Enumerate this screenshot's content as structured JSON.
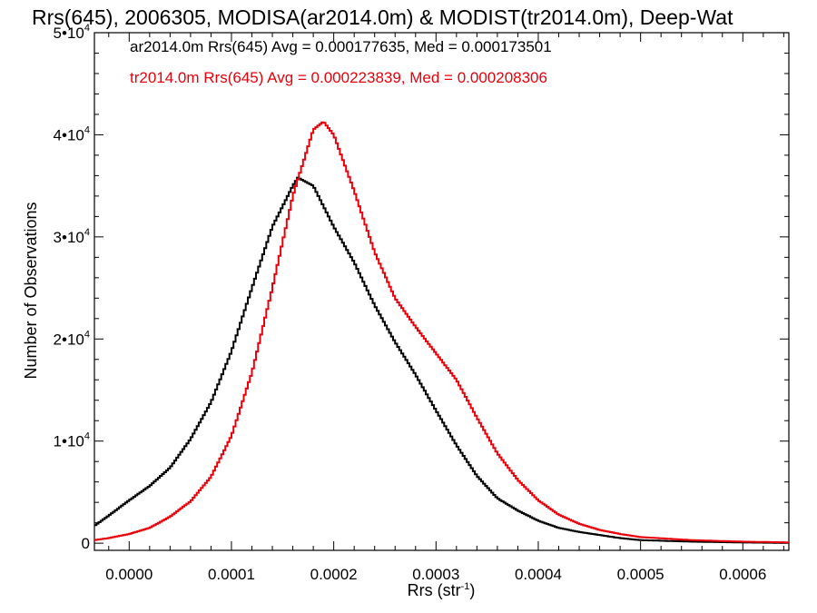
{
  "chart_data": {
    "type": "line",
    "title": "Rrs(645), 2006305, MODISA(ar2014.0m) & MODIST(tr2014.0m), Deep-Wat",
    "xlabel": {
      "base": "Rrs (str",
      "sup": "-1",
      "close": ")"
    },
    "ylabel": "Number of Observations",
    "xlim": [
      -3.4e-05,
      0.000645
    ],
    "ylim": [
      -700,
      50000
    ],
    "x_tick_labels": [
      "0.0000",
      "0.0001",
      "0.0002",
      "0.0003",
      "0.0004",
      "0.0005",
      "0.0006"
    ],
    "x_tick_values": [
      0.0,
      0.0001,
      0.0002,
      0.0003,
      0.0004,
      0.0005,
      0.0006
    ],
    "y_tick_values": [
      0,
      10000,
      20000,
      30000,
      40000,
      50000
    ],
    "y_tick_labels": [
      {
        "base": "0",
        "sup": ""
      },
      {
        "base": "1•10",
        "sup": "4"
      },
      {
        "base": "2•10",
        "sup": "4"
      },
      {
        "base": "3•10",
        "sup": "4"
      },
      {
        "base": "4•10",
        "sup": "4"
      },
      {
        "base": "5•10",
        "sup": "4"
      }
    ],
    "legend_text": [
      "ar2014.0m Rrs(645) Avg = 0.000177635, Med = 0.000173501",
      "tr2014.0m Rrs(645) Avg = 0.000223839, Med = 0.000208306"
    ],
    "legend_colors": [
      "#000000",
      "#e8000b"
    ],
    "legend_placement": "top-left",
    "series": [
      {
        "color": "#000000",
        "style": "step",
        "x": [
          -3.4e-05,
          -2e-05,
          0.0,
          2e-05,
          4e-05,
          6e-05,
          8e-05,
          0.0001,
          0.00012,
          0.00014,
          0.00016,
          0.000165,
          0.00018,
          0.0002,
          0.00022,
          0.00024,
          0.00026,
          0.00028,
          0.0003,
          0.00032,
          0.00034,
          0.00036,
          0.00038,
          0.0004,
          0.00042,
          0.00044,
          0.00046,
          0.00048,
          0.0005,
          0.00055,
          0.0006,
          0.000645
        ],
        "y": [
          1700,
          2700,
          4200,
          5600,
          7400,
          10200,
          13800,
          18800,
          25000,
          31000,
          35000,
          35800,
          35000,
          31000,
          27500,
          23300,
          19700,
          16500,
          13000,
          9600,
          6600,
          4400,
          3200,
          2200,
          1500,
          1100,
          800,
          500,
          300,
          150,
          70,
          30
        ]
      },
      {
        "color": "#e8000b",
        "style": "step",
        "x": [
          -3.4e-05,
          -2e-05,
          0.0,
          2e-05,
          4e-05,
          6e-05,
          8e-05,
          0.0001,
          0.00012,
          0.00014,
          0.00016,
          0.00018,
          0.00019,
          0.0002,
          0.00022,
          0.00024,
          0.00026,
          0.00028,
          0.0003,
          0.00032,
          0.00034,
          0.00036,
          0.00038,
          0.0004,
          0.00042,
          0.00044,
          0.00046,
          0.00048,
          0.0005,
          0.00055,
          0.0006,
          0.000645
        ],
        "y": [
          300,
          500,
          900,
          1500,
          2600,
          4100,
          6500,
          10500,
          16700,
          25000,
          34000,
          40500,
          41300,
          40000,
          34500,
          28500,
          24000,
          21200,
          18600,
          16000,
          12300,
          8800,
          6200,
          4200,
          2800,
          1900,
          1300,
          900,
          600,
          300,
          150,
          80
        ]
      }
    ]
  }
}
